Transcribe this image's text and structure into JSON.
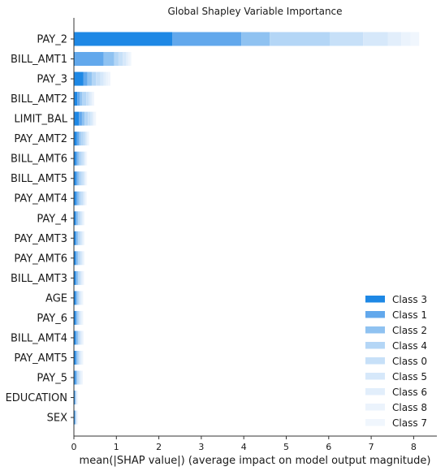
{
  "chart_data": {
    "type": "bar",
    "orientation": "horizontal",
    "stacked": true,
    "title": "Global Shapley Variable Importance",
    "xlabel": "mean(|SHAP value|) (average impact on model output magnitude)",
    "ylabel": "",
    "xlim": [
      0,
      8.5
    ],
    "xticks": [
      "0",
      "1",
      "2",
      "3",
      "4",
      "5",
      "6",
      "7",
      "8"
    ],
    "grid": false,
    "legend_position": "lower-right",
    "categories": [
      "PAY_2",
      "BILL_AMT1",
      "PAY_3",
      "BILL_AMT2",
      "LIMIT_BAL",
      "PAY_AMT2",
      "BILL_AMT6",
      "BILL_AMT5",
      "PAY_AMT4",
      "PAY_4",
      "PAY_AMT3",
      "PAY_AMT6",
      "BILL_AMT3",
      "AGE",
      "PAY_6",
      "BILL_AMT4",
      "PAY_AMT5",
      "PAY_5",
      "EDUCATION",
      "SEX"
    ],
    "series": [
      {
        "name": "Class 3",
        "color": "#1e88e5",
        "values": [
          2.32,
          0.02,
          0.22,
          0.08,
          0.12,
          0.07,
          0.05,
          0.05,
          0.05,
          0.04,
          0.04,
          0.04,
          0.04,
          0.04,
          0.04,
          0.04,
          0.04,
          0.03,
          0.02,
          0.02
        ]
      },
      {
        "name": "Class 1",
        "color": "#62a8ec",
        "values": [
          1.62,
          0.68,
          0.1,
          0.06,
          0.07,
          0.05,
          0.04,
          0.04,
          0.04,
          0.03,
          0.03,
          0.03,
          0.03,
          0.03,
          0.03,
          0.03,
          0.03,
          0.03,
          0.01,
          0.01
        ]
      },
      {
        "name": "Class 2",
        "color": "#8fc2f1",
        "values": [
          0.67,
          0.25,
          0.1,
          0.05,
          0.06,
          0.04,
          0.04,
          0.04,
          0.04,
          0.03,
          0.03,
          0.03,
          0.03,
          0.02,
          0.02,
          0.03,
          0.02,
          0.02,
          0.01,
          0.01
        ]
      },
      {
        "name": "Class 4",
        "color": "#b4d6f6",
        "values": [
          1.42,
          0.1,
          0.1,
          0.1,
          0.08,
          0.06,
          0.05,
          0.05,
          0.04,
          0.04,
          0.04,
          0.04,
          0.03,
          0.03,
          0.03,
          0.03,
          0.03,
          0.03,
          0.01,
          0.01
        ]
      },
      {
        "name": "Class 0",
        "color": "#c7e0f8",
        "values": [
          0.78,
          0.1,
          0.1,
          0.06,
          0.06,
          0.05,
          0.04,
          0.04,
          0.04,
          0.03,
          0.03,
          0.03,
          0.03,
          0.02,
          0.02,
          0.02,
          0.02,
          0.02,
          0.01,
          0.01
        ]
      },
      {
        "name": "Class 5",
        "color": "#d6e8fa",
        "values": [
          0.58,
          0.08,
          0.08,
          0.04,
          0.04,
          0.03,
          0.03,
          0.03,
          0.03,
          0.02,
          0.02,
          0.02,
          0.02,
          0.02,
          0.02,
          0.02,
          0.02,
          0.02,
          0.01,
          0.01
        ]
      },
      {
        "name": "Class 6",
        "color": "#e2eefb",
        "values": [
          0.32,
          0.04,
          0.06,
          0.03,
          0.03,
          0.02,
          0.02,
          0.02,
          0.02,
          0.02,
          0.02,
          0.02,
          0.02,
          0.02,
          0.02,
          0.02,
          0.02,
          0.02,
          0.01,
          0.01
        ]
      },
      {
        "name": "Class 8",
        "color": "#ebf3fc",
        "values": [
          0.22,
          0.04,
          0.05,
          0.03,
          0.03,
          0.02,
          0.02,
          0.02,
          0.02,
          0.02,
          0.02,
          0.02,
          0.02,
          0.02,
          0.02,
          0.02,
          0.02,
          0.02,
          0.01,
          0.01
        ]
      },
      {
        "name": "Class 7",
        "color": "#f0f6fd",
        "values": [
          0.2,
          0.04,
          0.05,
          0.03,
          0.03,
          0.02,
          0.02,
          0.02,
          0.02,
          0.02,
          0.02,
          0.02,
          0.02,
          0.02,
          0.02,
          0.02,
          0.02,
          0.02,
          0.01,
          0.01
        ]
      }
    ]
  }
}
